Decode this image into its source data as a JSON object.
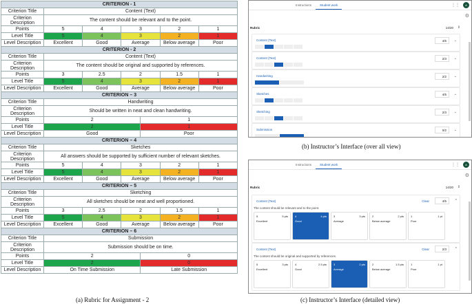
{
  "rubric_table": {
    "labels": {
      "title": "Criterion Title",
      "description": "Criterion Description",
      "points": "Points",
      "level_title": "Level Title",
      "level_description": "Level Description"
    },
    "criteria": [
      {
        "header": "CRITERION - 1",
        "title": "Content (Text)",
        "description": "The content should be relevant and to the point.",
        "points": [
          "5",
          "4",
          "3",
          "2",
          "1"
        ],
        "levels": [
          "5",
          "4",
          "3",
          "2",
          "1"
        ],
        "level_colors": [
          "#1da54b",
          "#7dc35b",
          "#e6e43c",
          "#f4b223",
          "#e32b2b"
        ],
        "level_descriptions": [
          "Excellent",
          "Good",
          "Average",
          "Below average",
          "Poor"
        ]
      },
      {
        "header": "CRITERION - 2",
        "title": "Content (Text)",
        "description": "The content should be original and supported by references.",
        "points": [
          "3",
          "2.5",
          "2",
          "1.5",
          "1"
        ],
        "levels": [
          "5",
          "4",
          "3",
          "2",
          "1"
        ],
        "level_colors": [
          "#1da54b",
          "#7dc35b",
          "#e6e43c",
          "#f4b223",
          "#e32b2b"
        ],
        "level_descriptions": [
          "Excellent",
          "Good",
          "Average",
          "Below average",
          "Poor"
        ]
      },
      {
        "header": "CRITERION – 3",
        "title": "Handwriting",
        "description": "Should be written in neat and clean handwriting.",
        "points": [
          "2",
          "1"
        ],
        "levels": [
          "2",
          "1"
        ],
        "level_colors": [
          "#1da54b",
          "#e32b2b"
        ],
        "level_descriptions": [
          "Good",
          "Poor"
        ]
      },
      {
        "header": "CRITERION – 4",
        "title": "Sketches",
        "description": "All answers should be supported by sufficient number of relevant sketches.",
        "points": [
          "5",
          "4",
          "3",
          "2",
          "1"
        ],
        "levels": [
          "5",
          "4",
          "3",
          "2",
          "1"
        ],
        "level_colors": [
          "#1da54b",
          "#7dc35b",
          "#e6e43c",
          "#f4b223",
          "#e32b2b"
        ],
        "level_descriptions": [
          "Excellent",
          "Good",
          "Average",
          "Below average",
          "Poor"
        ]
      },
      {
        "header": "CRITERION – 5",
        "title": "Sketching",
        "description": "All sketches should be neat and well proportioned.",
        "points": [
          "3",
          "2.5",
          "2",
          "1.5",
          "1"
        ],
        "levels": [
          "5",
          "4",
          "3",
          "2",
          "1"
        ],
        "level_colors": [
          "#1da54b",
          "#7dc35b",
          "#e6e43c",
          "#f4b223",
          "#e32b2b"
        ],
        "level_descriptions": [
          "Excellent",
          "Good",
          "Average",
          "Below average",
          "Poor"
        ]
      },
      {
        "header": "CRITERION – 6",
        "title": "Submission",
        "description": "Submission should be on time.",
        "points": [
          "2",
          "0"
        ],
        "levels": [
          "2",
          "0"
        ],
        "level_colors": [
          "#1da54b",
          "#e32b2b"
        ],
        "level_descriptions": [
          "On Time Submission",
          "Late Submission"
        ]
      }
    ]
  },
  "captions": {
    "a": "(a) Rubric for Assignment  - 2",
    "b": "(b) Instructor’s Interface (over all view)",
    "c": "(c) Instructor’s Interface (detailed view)"
  },
  "ui": {
    "tabs": [
      "Instructions",
      "Student work"
    ],
    "avatar": "A",
    "rubric_label": "Rubric",
    "total": "14/20",
    "clear": "Clear",
    "overview": [
      {
        "title": "Content (Text)",
        "score": "4/5",
        "segments": 5,
        "selected": 1
      },
      {
        "title": "Content (Text)",
        "score": "2/3",
        "segments": 5,
        "selected": 2
      },
      {
        "title": "Handwriting",
        "score": "2/2",
        "segments": 2,
        "selected": 0
      },
      {
        "title": "Sketches",
        "score": "4/5",
        "segments": 5,
        "selected": 1
      },
      {
        "title": "Sketching",
        "score": "2/3",
        "segments": 5,
        "selected": 2
      },
      {
        "title": "Submission",
        "score": "0/2",
        "segments": 2,
        "selected": 1
      }
    ],
    "detailed": [
      {
        "title": "Content (Text)",
        "description": "The content should be relevant and to the point.",
        "score": "4/5",
        "selected": 1,
        "cards": [
          {
            "n": "5",
            "pts": "5 pts",
            "d": "Excellent"
          },
          {
            "n": "4",
            "pts": "4 pts",
            "d": "Good"
          },
          {
            "n": "3",
            "pts": "3 pts",
            "d": "Average"
          },
          {
            "n": "2",
            "pts": "2 pts",
            "d": "Below average"
          },
          {
            "n": "1",
            "pts": "1 pt",
            "d": "Poor"
          }
        ]
      },
      {
        "title": "Content (Text)",
        "description": "The content should be original and supported by references.",
        "score": "2/3",
        "selected": 2,
        "cards": [
          {
            "n": "5",
            "pts": "3 pts",
            "d": "Excellent"
          },
          {
            "n": "4",
            "pts": "2.5 pts",
            "d": "Good"
          },
          {
            "n": "3",
            "pts": "2 pts",
            "d": "Average"
          },
          {
            "n": "2",
            "pts": "1.5 pts",
            "d": "Below average"
          },
          {
            "n": "1",
            "pts": "1 pt",
            "d": "Poor"
          }
        ]
      }
    ]
  }
}
